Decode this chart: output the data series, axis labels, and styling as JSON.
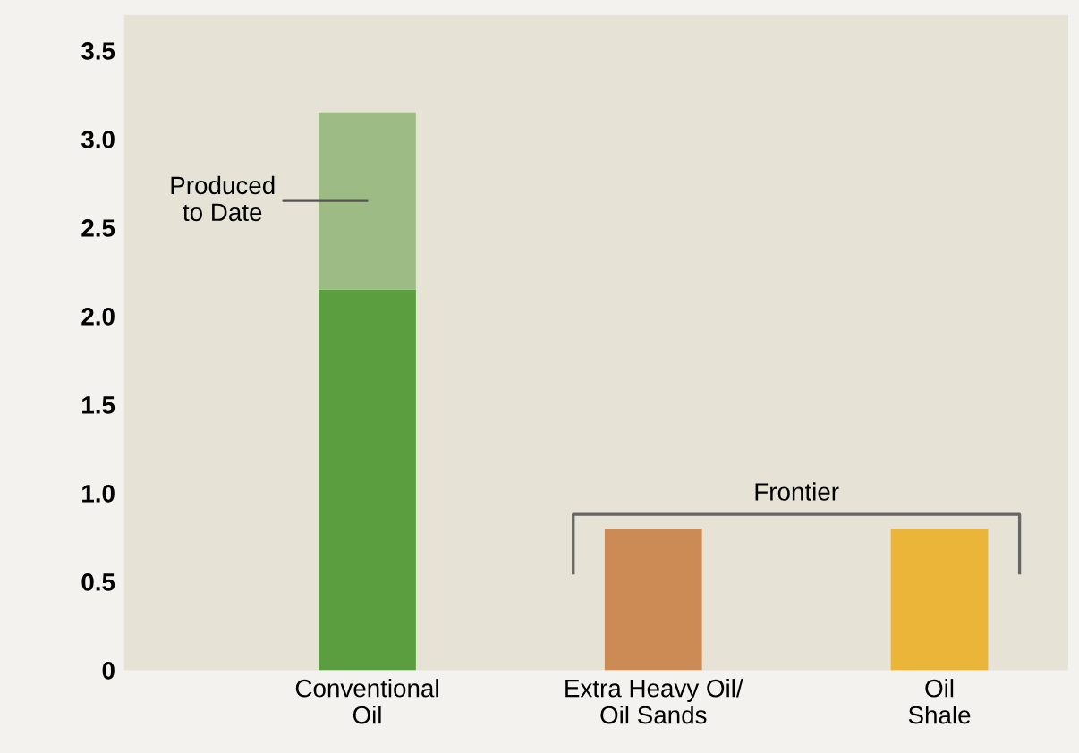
{
  "chart_data": {
    "type": "bar",
    "stacked": true,
    "categories": [
      "Conventional\nOil",
      "Extra Heavy Oil/\nOil Sands",
      "Oil\nShale"
    ],
    "series": [
      {
        "colors": [
          "#5a9e40",
          "#cc8a55",
          "#ebb53a"
        ],
        "values": [
          2.15,
          0.8,
          0.8
        ]
      },
      {
        "color": "#9dbb85",
        "values": [
          1.0,
          null,
          null
        ]
      }
    ],
    "ylim": [
      0,
      3.7
    ],
    "yticks": [
      0,
      0.5,
      {
        "value": 1,
        "label": "1.0"
      },
      1.5,
      {
        "value": 2,
        "label": "2.0"
      },
      2.5,
      {
        "value": 3,
        "label": "3.0"
      },
      3.5
    ],
    "annotations": [
      "Produced\nto Date",
      "Frontier"
    ],
    "grid": false,
    "legend": false
  }
}
